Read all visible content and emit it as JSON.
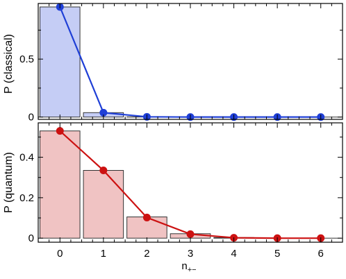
{
  "chart_data": [
    {
      "type": "bar",
      "panel": "top",
      "ylabel": "P (classical)",
      "x": [
        0,
        1,
        2,
        3,
        4,
        5,
        6
      ],
      "xlim": [
        -0.5,
        6.5
      ],
      "ylim": [
        -0.02,
        0.98
      ],
      "yticks": [
        0,
        0.5
      ],
      "ytick_labels": [
        "0",
        "0.5"
      ],
      "xtick_labels": [],
      "bar_values": [
        0.95,
        0.038,
        0.002,
        0.0,
        0.0,
        0.0,
        0.0
      ],
      "line_values": [
        0.95,
        0.038,
        0.002,
        0.0,
        0.0,
        0.0,
        0.0
      ],
      "bar_color": "#c5cdf5",
      "line_color": "#1f3fd6",
      "grid": false
    },
    {
      "type": "bar",
      "panel": "bottom",
      "ylabel": "P (quantum)",
      "xlabel_main": "n",
      "xlabel_sub": "+−",
      "x": [
        0,
        1,
        2,
        3,
        4,
        5,
        6
      ],
      "xlim": [
        -0.5,
        6.5
      ],
      "ylim": [
        -0.02,
        0.57
      ],
      "yticks": [
        0,
        0.2,
        0.4
      ],
      "ytick_labels": [
        "0",
        "0.2",
        "0.4"
      ],
      "xtick_labels": [
        "0",
        "1",
        "2",
        "3",
        "4",
        "5",
        "6"
      ],
      "bar_values": [
        0.53,
        0.335,
        0.105,
        0.022,
        0.003,
        0.0,
        0.0
      ],
      "line_values": [
        0.53,
        0.335,
        0.102,
        0.02,
        0.002,
        0.0,
        0.0
      ],
      "bar_color": "#f0c3c3",
      "line_color": "#cc1111",
      "grid": false
    }
  ]
}
